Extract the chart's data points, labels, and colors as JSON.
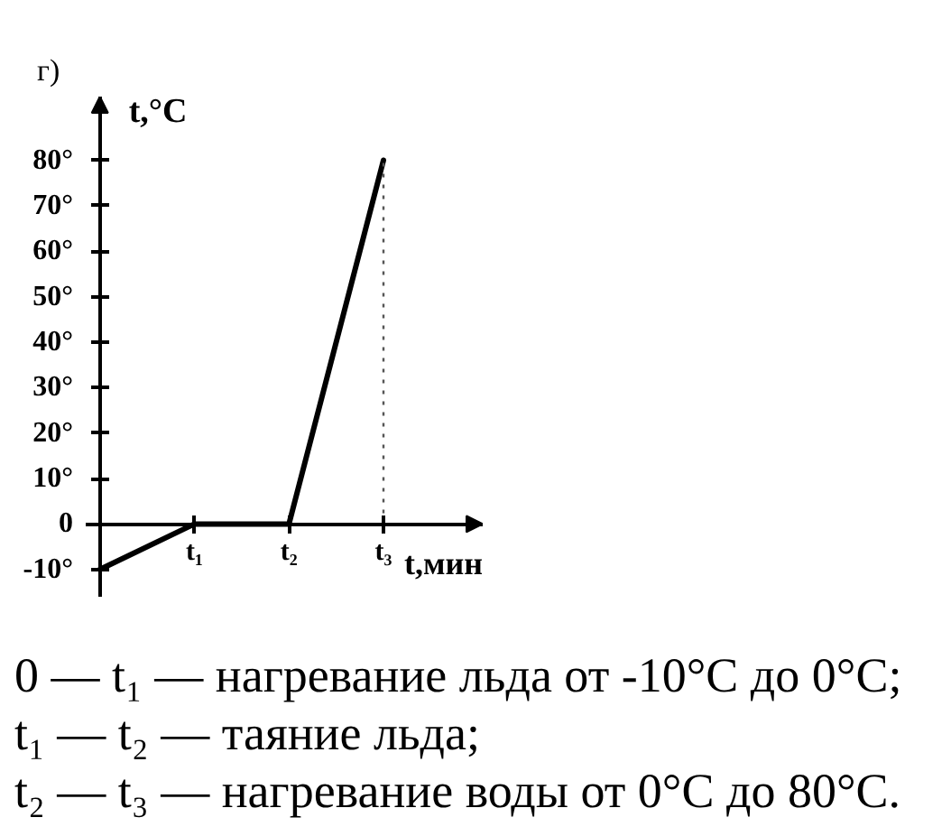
{
  "chart_data": {
    "type": "line",
    "title": "г)",
    "ylabel": "t,°C",
    "xlabel": "t,мин",
    "categories": [
      null,
      "t₁",
      "t₂",
      "t₃"
    ],
    "values": [
      -10,
      0,
      0,
      80
    ],
    "color": "#000000",
    "ylim": [
      -16,
      94
    ],
    "yticks": [
      {
        "value": -10,
        "label": "-10°"
      },
      {
        "value": 0,
        "label": "0"
      },
      {
        "value": 10,
        "label": "10°"
      },
      {
        "value": 20,
        "label": "20°"
      },
      {
        "value": 30,
        "label": "30°"
      },
      {
        "value": 40,
        "label": "40°"
      },
      {
        "value": 50,
        "label": "50°"
      },
      {
        "value": 60,
        "label": "60°"
      },
      {
        "value": 70,
        "label": "70°"
      },
      {
        "value": 80,
        "label": "80°"
      }
    ],
    "ref_lines": [
      {
        "axis": "x",
        "value": "t₃",
        "line_style": "dotted",
        "color": "#555555"
      }
    ],
    "annotations": [
      "0 — t₁ — нагревание льда от -10°C до 0°C;",
      "t₁ — t₂ — таяние льда;",
      "t₂ — t₃ — нагревание воды от 0°C до 80°C."
    ]
  }
}
